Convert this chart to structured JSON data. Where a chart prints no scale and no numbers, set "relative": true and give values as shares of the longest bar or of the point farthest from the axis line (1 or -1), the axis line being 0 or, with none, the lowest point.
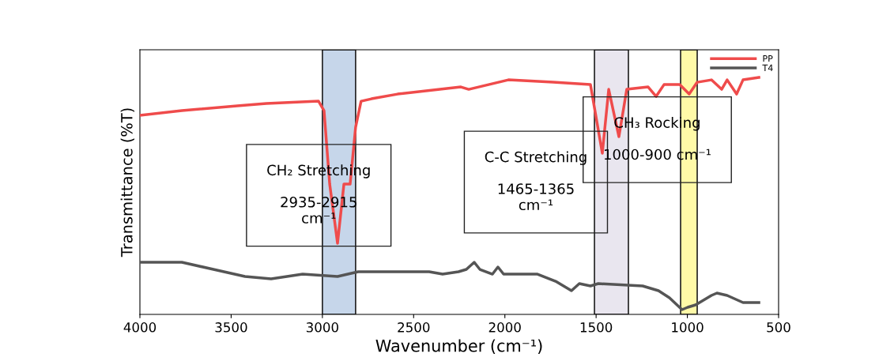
{
  "chart_data": {
    "type": "line",
    "relative": true,
    "xlabel": "Wavenumber (cm⁻¹)",
    "ylabel": "Transmittance (%T)",
    "xlim": [
      4000,
      500
    ],
    "xticks": [
      4000,
      3500,
      3000,
      2500,
      2000,
      1500,
      1000,
      500
    ],
    "legend": "top right",
    "grid": false,
    "marker": "none",
    "line_style": "solid",
    "series": [
      {
        "name": "PP",
        "color": "#ef4b4b",
        "x": [
          4000,
          3770,
          3467,
          3307,
          3021,
          2991,
          2960,
          2917,
          2882,
          2848,
          2818,
          2788,
          2731,
          2588,
          2241,
          2198,
          1981,
          1735,
          1531,
          1466,
          1431,
          1375,
          1332,
          1215,
          1171,
          1128,
          1042,
          990,
          946,
          868,
          812,
          782,
          730,
          695,
          608
        ],
        "values": [
          0.84,
          0.86,
          0.88,
          0.89,
          0.9,
          0.86,
          0.55,
          0.3,
          0.55,
          0.55,
          0.79,
          0.9,
          0.91,
          0.93,
          0.96,
          0.95,
          0.99,
          0.98,
          0.97,
          0.68,
          0.95,
          0.75,
          0.95,
          0.96,
          0.92,
          0.97,
          0.97,
          0.93,
          0.98,
          0.99,
          0.95,
          0.99,
          0.93,
          0.99,
          1.0
        ]
      },
      {
        "name": "T4",
        "color": "#555555",
        "x": [
          4000,
          3770,
          3597,
          3424,
          3281,
          3108,
          2917,
          2804,
          2588,
          2415,
          2341,
          2254,
          2211,
          2168,
          2137,
          2068,
          2038,
          2007,
          1821,
          1722,
          1635,
          1592,
          1531,
          1488,
          1245,
          1158,
          1098,
          1029,
          998,
          955,
          868,
          838,
          782,
          695,
          608
        ],
        "values": [
          0.22,
          0.22,
          0.19,
          0.16,
          0.15,
          0.17,
          0.16,
          0.18,
          0.18,
          0.18,
          0.17,
          0.18,
          0.19,
          0.22,
          0.19,
          0.17,
          0.2,
          0.17,
          0.17,
          0.14,
          0.1,
          0.13,
          0.12,
          0.13,
          0.12,
          0.1,
          0.07,
          0.02,
          0.03,
          0.04,
          0.08,
          0.09,
          0.08,
          0.05,
          0.05
        ]
      }
    ],
    "bands": [
      {
        "axis": "x",
        "from": 3000,
        "to": 2818,
        "label": "CH₂ Stretching\n\n2935-2915\ncm⁻¹",
        "color": "#c6d6ea"
      },
      {
        "axis": "x",
        "from": 1509,
        "to": 1323,
        "label": "C-C Stretching\n\n1465-1365\ncm⁻¹",
        "color": "#e9e6ef"
      },
      {
        "axis": "x",
        "from": 1037,
        "to": 946,
        "label": "CH₃ Rocking\n\n1000-900 cm⁻¹",
        "color": "#fffaa8"
      }
    ]
  }
}
